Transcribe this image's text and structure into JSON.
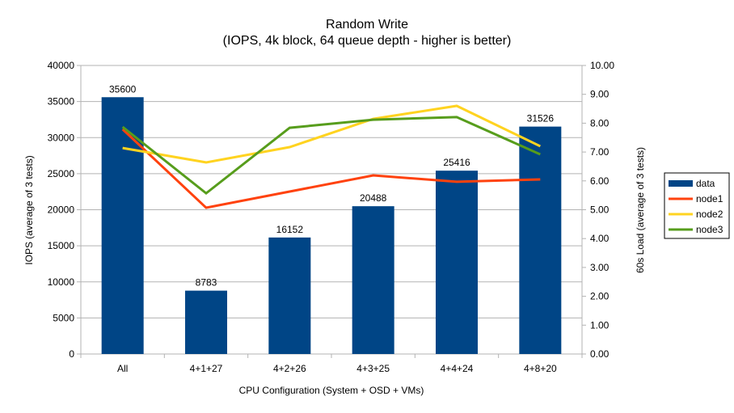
{
  "chart_data": {
    "type": "bar+line",
    "title": "Random Write",
    "subtitle": "(IOPS, 4k block, 64 queue depth - higher is better)",
    "xlabel": "CPU Configuration (System + OSD + VMs)",
    "ylabel": "IOPS (average of 3 tests)",
    "y2label": "60s Load (average of 3 tests)",
    "ylim": [
      0,
      40000
    ],
    "y2lim": [
      0,
      10
    ],
    "yticks": [
      "0",
      "5000",
      "10000",
      "15000",
      "20000",
      "25000",
      "30000",
      "35000",
      "40000"
    ],
    "y2ticks": [
      "0.00",
      "1.00",
      "2.00",
      "3.00",
      "4.00",
      "5.00",
      "6.00",
      "7.00",
      "8.00",
      "9.00",
      "10.00"
    ],
    "categories": [
      "All",
      "4+1+27",
      "4+2+26",
      "4+3+25",
      "4+4+24",
      "4+8+20"
    ],
    "grid": true,
    "legend_position": "right",
    "bars": {
      "name": "data",
      "color": "#004586",
      "values": [
        35600,
        8783,
        16152,
        20488,
        25416,
        31526
      ]
    },
    "series": [
      {
        "name": "node1",
        "color": "#ff420e",
        "axis": "y2",
        "values": [
          7.79,
          5.07,
          5.63,
          6.19,
          5.97,
          6.05
        ]
      },
      {
        "name": "node2",
        "color": "#ffd320",
        "axis": "y2",
        "values": [
          7.14,
          6.64,
          7.17,
          8.15,
          8.6,
          7.2
        ]
      },
      {
        "name": "node3",
        "color": "#579d1c",
        "axis": "y2",
        "values": [
          7.87,
          5.57,
          7.84,
          8.12,
          8.21,
          6.92
        ]
      }
    ]
  }
}
